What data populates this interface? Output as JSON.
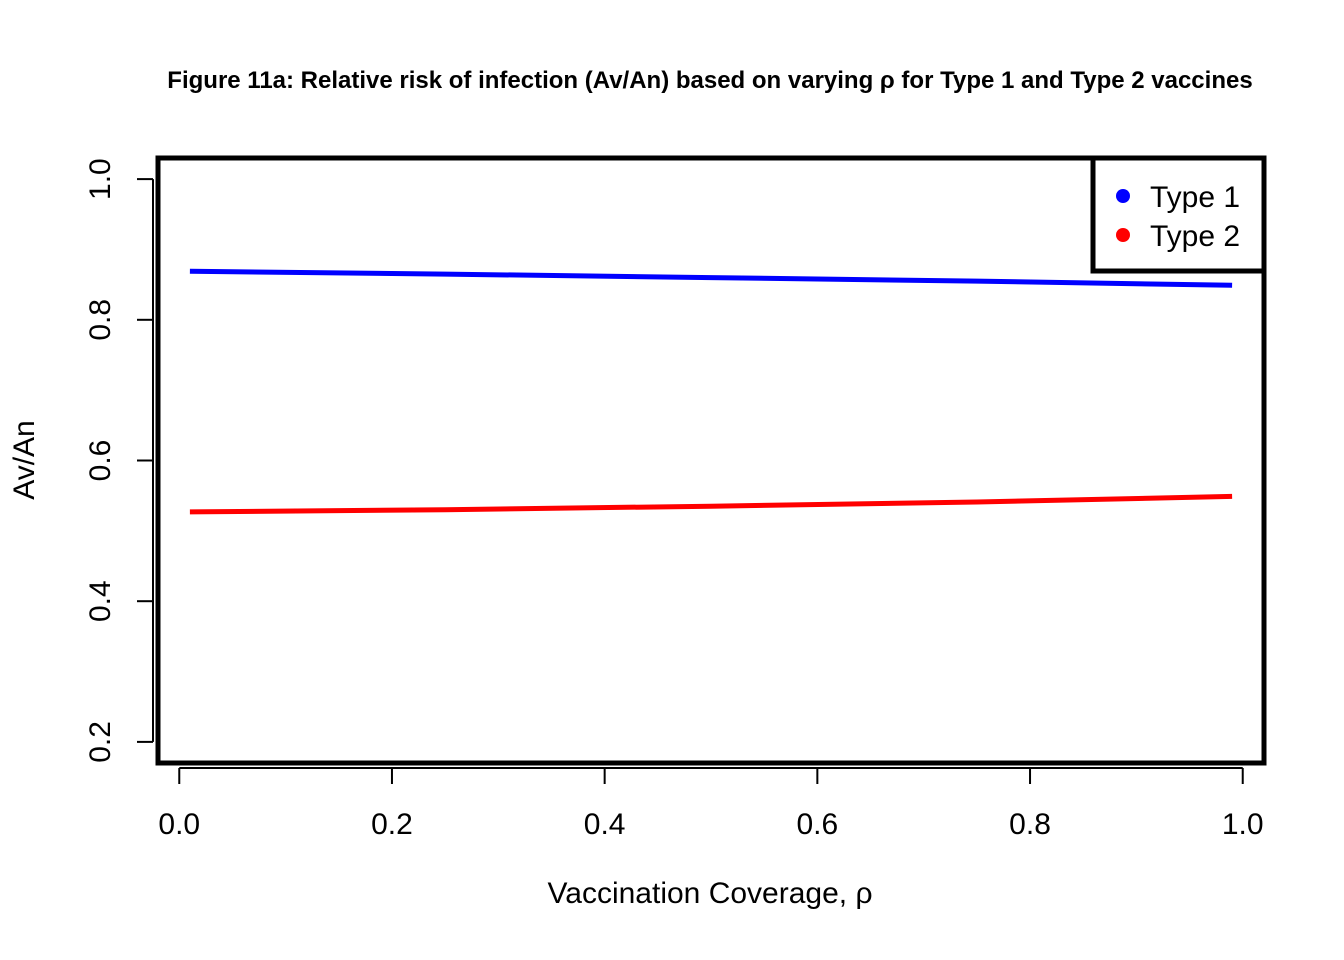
{
  "chart_data": {
    "type": "line",
    "title": "Figure 11a: Relative risk of infection (Av/An) based on varying ρ for Type 1 and Type 2 vaccines",
    "xlabel": "Vaccination Coverage,  ρ",
    "ylabel": "Av/An",
    "xlim": [
      -0.02,
      1.02
    ],
    "ylim": [
      0.17,
      1.03
    ],
    "xticks": [
      0.0,
      0.2,
      0.4,
      0.6,
      0.8,
      1.0
    ],
    "xtick_labels": [
      "0.0",
      "0.2",
      "0.4",
      "0.6",
      "0.8",
      "1.0"
    ],
    "yticks": [
      0.2,
      0.4,
      0.6,
      0.8,
      1.0
    ],
    "ytick_labels": [
      "0.2",
      "0.4",
      "0.6",
      "0.8",
      "1.0"
    ],
    "grid": false,
    "legend_position": "top-right",
    "series": [
      {
        "name": "Type 1",
        "color": "#0000ff",
        "x": [
          0.01,
          0.25,
          0.5,
          0.75,
          0.99
        ],
        "y": [
          0.869,
          0.865,
          0.86,
          0.855,
          0.849
        ]
      },
      {
        "name": "Type 2",
        "color": "#ff0000",
        "x": [
          0.01,
          0.25,
          0.5,
          0.75,
          0.99
        ],
        "y": [
          0.527,
          0.53,
          0.535,
          0.541,
          0.549
        ]
      }
    ]
  }
}
